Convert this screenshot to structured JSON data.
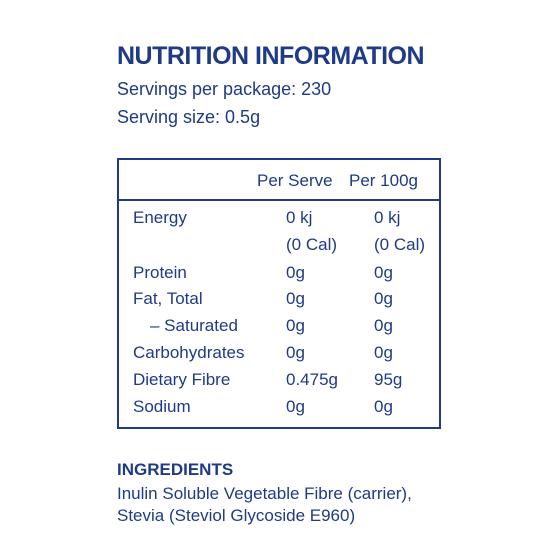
{
  "title": "NUTRITION INFORMATION",
  "servings_per_package": "Servings per package: 230",
  "serving_size": "Serving size: 0.5g",
  "table": {
    "headers": [
      "Per Serve",
      "Per 100g"
    ],
    "rows": [
      {
        "name": "Energy",
        "per_serve": "0 kj",
        "per_100g": "0 kj"
      },
      {
        "name": "",
        "per_serve": "(0 Cal)",
        "per_100g": "(0 Cal)"
      },
      {
        "name": "Protein",
        "per_serve": "0g",
        "per_100g": "0g"
      },
      {
        "name": "Fat, Total",
        "per_serve": "0g",
        "per_100g": "0g"
      },
      {
        "name": "– Saturated",
        "per_serve": "0g",
        "per_100g": "0g"
      },
      {
        "name": "Carbohydrates",
        "per_serve": "0g",
        "per_100g": "0g"
      },
      {
        "name": "Dietary Fibre",
        "per_serve": "0.475g",
        "per_100g": "95g"
      },
      {
        "name": "Sodium",
        "per_serve": "0g",
        "per_100g": "0g"
      }
    ]
  },
  "ingredients": {
    "title": "INGREDIENTS",
    "text": "Inulin Soluble Vegetable Fibre (carrier), Stevia (Steviol Glycoside E960)"
  },
  "colors": {
    "text": "#1f3a86",
    "background": "#ffffff"
  }
}
